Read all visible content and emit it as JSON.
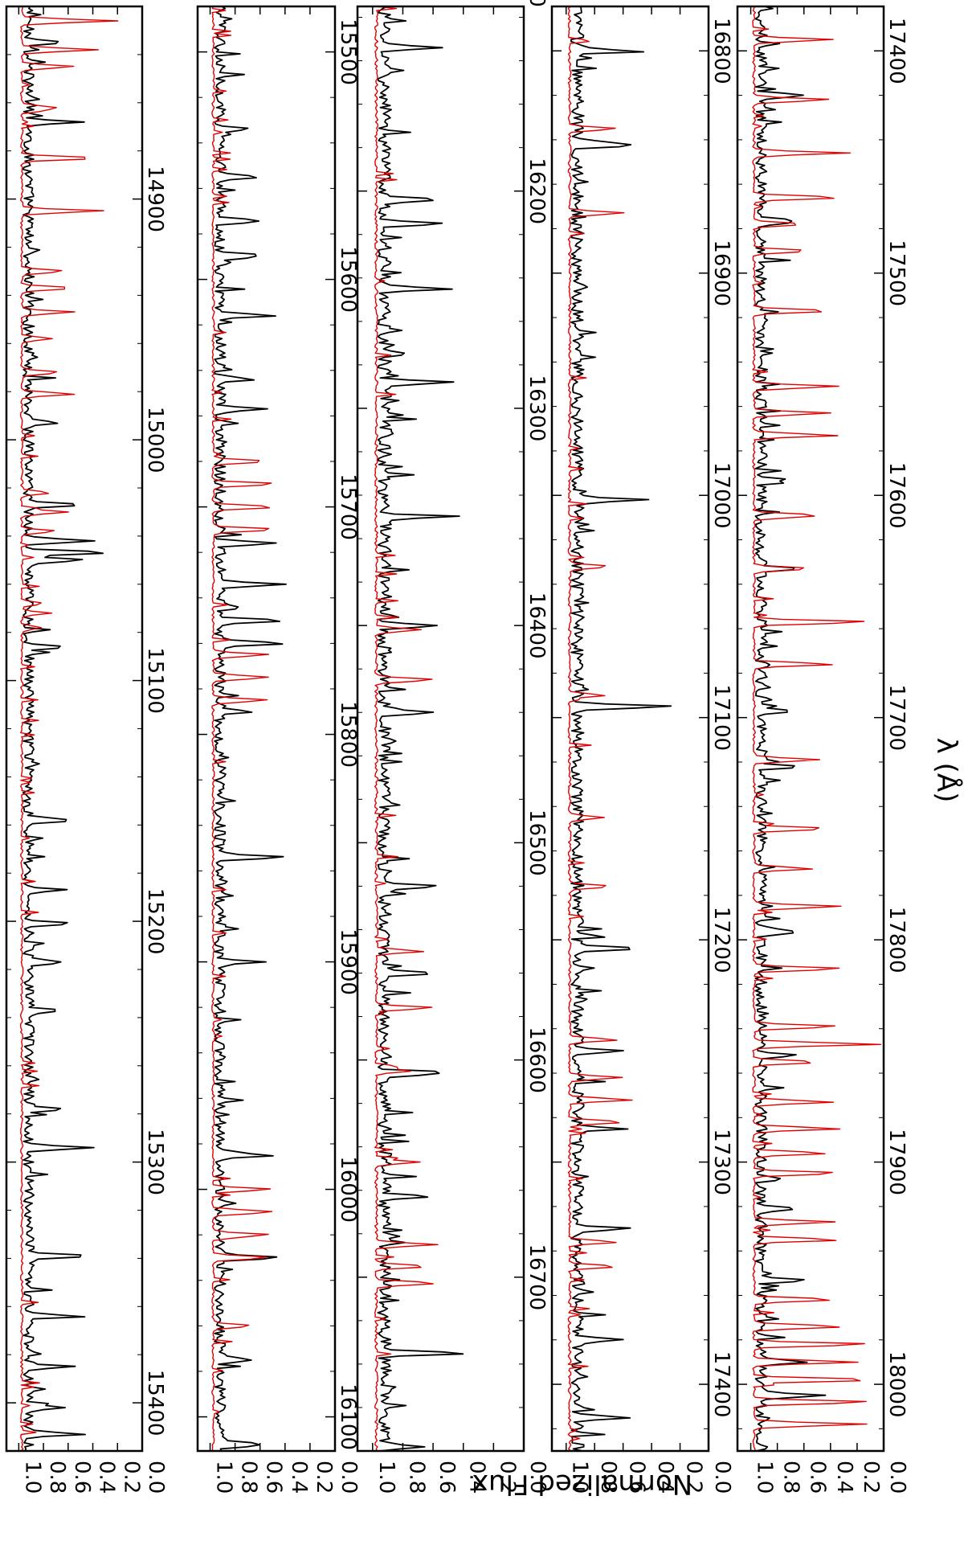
{
  "chart_data": {
    "type": "line",
    "orientation": "rotated-90-clockwise",
    "ylabel": "Normalized Flux",
    "xlabel": "λ (Å)",
    "ylim": [
      0.0,
      1.1
    ],
    "y_ticks": [
      "0.0",
      "0.2",
      "0.4",
      "0.6",
      "0.8",
      "1.0"
    ],
    "colors": {
      "observed": "#000000",
      "model": "#e00000"
    },
    "panels": [
      {
        "xlim": [
          14820,
          15420
        ],
        "x_ticks": [
          "14900",
          "15000",
          "15100",
          "15200",
          "15300",
          "15400"
        ],
        "series": [
          {
            "key": "observed",
            "color": "#000000",
            "lines": [
              [
                14835,
                0.69
              ],
              [
                14868,
                0.58
              ],
              [
                14993,
                0.77
              ],
              [
                15027,
                0.55
              ],
              [
                15042,
                0.45
              ],
              [
                15047,
                0.42
              ],
              [
                15050,
                0.51
              ],
              [
                15086,
                0.72
              ],
              [
                15158,
                0.71
              ],
              [
                15187,
                0.72
              ],
              [
                15201,
                0.64
              ],
              [
                15217,
                0.69
              ],
              [
                15237,
                0.71
              ],
              [
                15278,
                0.71
              ],
              [
                15294,
                0.46
              ],
              [
                15339,
                0.52
              ],
              [
                15364,
                0.7
              ],
              [
                15385,
                0.65
              ],
              [
                15402,
                0.72
              ],
              [
                15413,
                0.66
              ]
            ]
          },
          {
            "key": "model",
            "color": "#e00000",
            "lines": [
              [
                14826,
                0.22
              ],
              [
                14838,
                0.38
              ],
              [
                14845,
                0.56
              ],
              [
                14862,
                0.72
              ],
              [
                14883,
                0.37
              ],
              [
                14905,
                0.42
              ],
              [
                14930,
                0.65
              ],
              [
                14937,
                0.57
              ],
              [
                14947,
                0.62
              ],
              [
                14958,
                0.76
              ],
              [
                14972,
                0.68
              ],
              [
                14981,
                0.56
              ],
              [
                15022,
                0.76
              ],
              [
                15030,
                0.62
              ],
              [
                15038,
                0.72
              ],
              [
                15068,
                0.82
              ],
              [
                15072,
                0.82
              ],
              [
                15078,
                0.84
              ]
            ]
          }
        ]
      },
      {
        "xlim": [
          15480,
          16115
        ],
        "x_ticks": [
          "15500",
          "15600",
          "15700",
          "15800",
          "15900",
          "16000",
          "16100"
        ],
        "series": [
          {
            "key": "observed",
            "color": "#000000",
            "lines": [
              [
                15534,
                0.76
              ],
              [
                15555,
                0.68
              ],
              [
                15574,
                0.73
              ],
              [
                15590,
                0.7
              ],
              [
                15616,
                0.72
              ],
              [
                15644,
                0.72
              ],
              [
                15657,
                0.75
              ],
              [
                15716,
                0.52
              ],
              [
                15734,
                0.45
              ],
              [
                15750,
                0.48
              ],
              [
                15760,
                0.4
              ],
              [
                15790,
                0.7
              ],
              [
                15854,
                0.42
              ],
              [
                15900,
                0.67
              ],
              [
                15985,
                0.56
              ],
              [
                16030,
                0.52
              ],
              [
                16075,
                0.71
              ],
              [
                16112,
                0.68
              ]
            ]
          },
          {
            "key": "model",
            "color": "#e00000",
            "lines": [
              [
                15680,
                0.55
              ],
              [
                15690,
                0.52
              ],
              [
                15700,
                0.5
              ],
              [
                15710,
                0.52
              ],
              [
                15765,
                0.55
              ],
              [
                15775,
                0.54
              ],
              [
                15785,
                0.56
              ],
              [
                16000,
                0.52
              ],
              [
                16010,
                0.5
              ],
              [
                16020,
                0.52
              ],
              [
                16030,
                0.54
              ],
              [
                16060,
                0.68
              ]
            ]
          }
        ]
      },
      {
        "xlim": [
          16115,
          16780
        ],
        "x_ticks": [
          "16100",
          "16200",
          "16300",
          "16400",
          "16500",
          "16600",
          "16700"
        ],
        "series": [
          {
            "key": "observed",
            "color": "#000000",
            "lines": [
              [
                16134,
                0.6
              ],
              [
                16204,
                0.63
              ],
              [
                16215,
                0.58
              ],
              [
                16245,
                0.58
              ],
              [
                16288,
                0.54
              ],
              [
                16350,
                0.64
              ],
              [
                16400,
                0.63
              ],
              [
                16440,
                0.66
              ],
              [
                16520,
                0.63
              ],
              [
                16560,
                0.64
              ],
              [
                16606,
                0.6
              ],
              [
                16663,
                0.68
              ],
              [
                16735,
                0.46
              ],
              [
                16778,
                0.7
              ]
            ]
          },
          {
            "key": "model",
            "color": "#e00000",
            "lines": [
              [
                16402,
                0.7
              ],
              [
                16425,
                0.6
              ],
              [
                16550,
                0.68
              ],
              [
                16576,
                0.62
              ],
              [
                16605,
                0.76
              ],
              [
                16647,
                0.72
              ],
              [
                16685,
                0.6
              ],
              [
                16695,
                0.65
              ],
              [
                16703,
                0.62
              ]
            ]
          }
        ]
      },
      {
        "xlim": [
          16780,
          17430
        ],
        "x_ticks": [
          "16800",
          "16900",
          "17000",
          "17100",
          "17200",
          "17300",
          "17400"
        ],
        "series": [
          {
            "key": "observed",
            "color": "#000000",
            "lines": [
              [
                16800,
                0.63
              ],
              [
                16842,
                0.58
              ],
              [
                17002,
                0.48
              ],
              [
                17095,
                0.33
              ],
              [
                17204,
                0.56
              ],
              [
                17250,
                0.7
              ],
              [
                17285,
                0.66
              ],
              [
                17330,
                0.61
              ],
              [
                17380,
                0.7
              ],
              [
                17415,
                0.66
              ]
            ]
          },
          {
            "key": "model",
            "color": "#e00000",
            "lines": [
              [
                16835,
                0.66
              ],
              [
                16873,
                0.62
              ],
              [
                17032,
                0.72
              ],
              [
                17090,
                0.75
              ],
              [
                17145,
                0.76
              ],
              [
                17176,
                0.7
              ],
              [
                17245,
                0.66
              ],
              [
                17262,
                0.62
              ],
              [
                17272,
                0.56
              ],
              [
                17282,
                0.6
              ],
              [
                17336,
                0.66
              ],
              [
                17347,
                0.66
              ]
            ]
          }
        ]
      },
      {
        "xlim": [
          17380,
          18030
        ],
        "x_ticks": [
          "17400",
          "17500",
          "17600",
          "17700",
          "17800",
          "17900",
          "18000"
        ],
        "series": [
          {
            "key": "observed",
            "color": "#000000",
            "lines": [
              [
                17420,
                0.64
              ],
              [
                17477,
                0.73
              ],
              [
                17593,
                0.76
              ],
              [
                17633,
                0.68
              ],
              [
                17697,
                0.76
              ],
              [
                17722,
                0.71
              ],
              [
                17797,
                0.77
              ],
              [
                17852,
                0.72
              ],
              [
                17921,
                0.71
              ],
              [
                17953,
                0.72
              ],
              [
                17990,
                0.68
              ],
              [
                18005,
                0.55
              ]
            ]
          },
          {
            "key": "model",
            "color": "#e00000",
            "lines": [
              [
                17395,
                0.4
              ],
              [
                17422,
                0.41
              ],
              [
                17446,
                0.37
              ],
              [
                17466,
                0.32
              ],
              [
                17478,
                0.62
              ],
              [
                17490,
                0.58
              ],
              [
                17517,
                0.4
              ],
              [
                17551,
                0.35
              ],
              [
                17563,
                0.41
              ],
              [
                17573,
                0.36
              ],
              [
                17609,
                0.48
              ],
              [
                17633,
                0.55
              ],
              [
                17657,
                0.1
              ],
              [
                17676,
                0.38
              ],
              [
                17719,
                0.5
              ],
              [
                17750,
                0.42
              ],
              [
                17768,
                0.55
              ],
              [
                17785,
                0.33
              ],
              [
                17813,
                0.31
              ],
              [
                17839,
                0.34
              ],
              [
                17847,
                0.05
              ],
              [
                17855,
                0.5
              ],
              [
                17873,
                0.4
              ],
              [
                17885,
                0.35
              ],
              [
                17896,
                0.43
              ],
              [
                17905,
                0.32
              ],
              [
                17927,
                0.38
              ],
              [
                17935,
                0.34
              ],
              [
                17962,
                0.4
              ],
              [
                17974,
                0.3
              ],
              [
                17982,
                0.1
              ],
              [
                17990,
                0.22
              ],
              [
                17998,
                0.05
              ],
              [
                18008,
                0.08
              ],
              [
                18018,
                0.15
              ]
            ]
          }
        ]
      }
    ]
  }
}
